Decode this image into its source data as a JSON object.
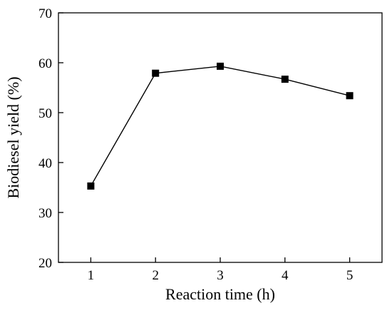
{
  "chart_data": {
    "type": "line",
    "title": "",
    "xlabel": "Reaction time (h)",
    "ylabel": "Biodiesel yield (%)",
    "x": [
      1,
      2,
      3,
      4,
      5
    ],
    "series": [
      {
        "values": [
          35.3,
          57.9,
          59.3,
          56.7,
          53.4
        ],
        "color": "#000000",
        "marker": "square"
      }
    ],
    "xticks": [
      1,
      2,
      3,
      4,
      5
    ],
    "yticks": [
      20,
      30,
      40,
      50,
      60,
      70
    ],
    "xlim": [
      0.5,
      5.5
    ],
    "ylim": [
      20,
      70
    ],
    "grid": false,
    "legend": "none"
  }
}
